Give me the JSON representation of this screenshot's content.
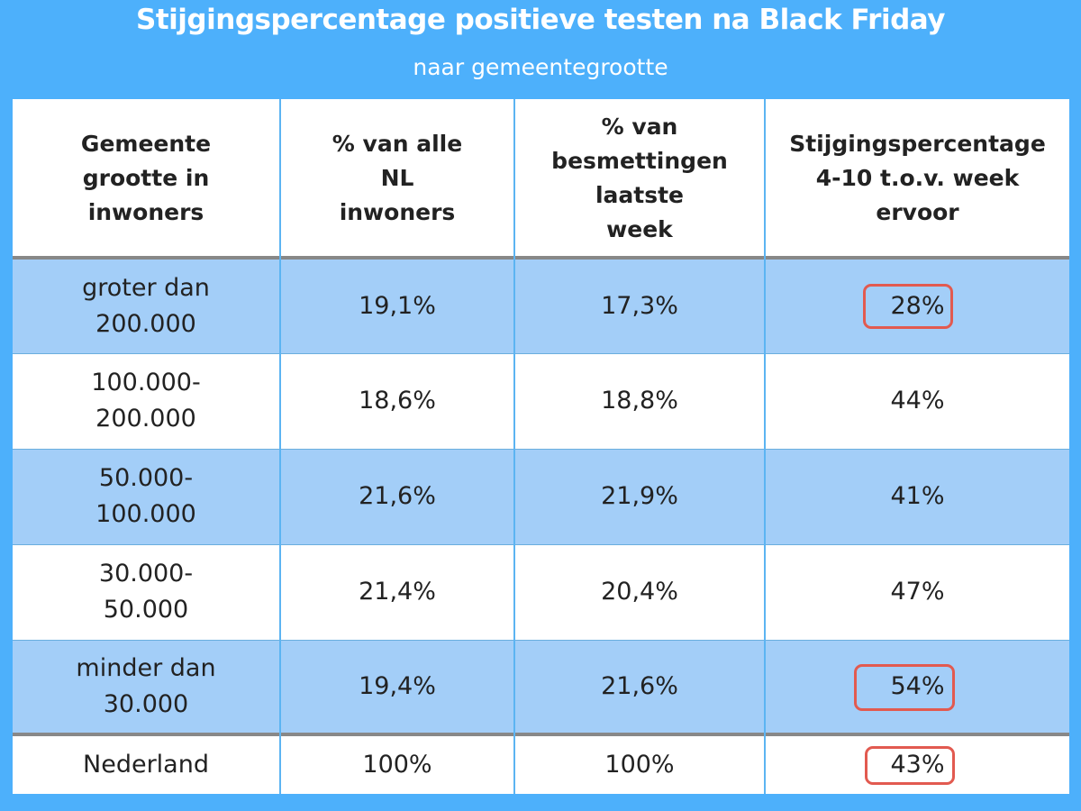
{
  "title": "Stijgingspercentage positieve testen na Black Friday",
  "subtitle": "naar gemeentegrootte",
  "headers": [
    [
      "Gemeente",
      "grootte in",
      "inwoners"
    ],
    [
      "% van alle",
      "NL",
      "inwoners"
    ],
    [
      "% van",
      "besmettingen",
      "laatste",
      "week"
    ],
    [
      "Stijgingspercentage",
      "4-10 t.o.v. week",
      "ervoor"
    ]
  ],
  "rows": [
    {
      "size": [
        "groter dan",
        "200.000"
      ],
      "pct_inhabitants": "19,1%",
      "pct_infections": "17,3%",
      "increase": "28%",
      "highlighted": true
    },
    {
      "size": [
        "100.000-",
        "200.000"
      ],
      "pct_inhabitants": "18,6%",
      "pct_infections": "18,8%",
      "increase": "44%",
      "highlighted": false
    },
    {
      "size": [
        "50.000-",
        "100.000"
      ],
      "pct_inhabitants": "21,6%",
      "pct_infections": "21,9%",
      "increase": "41%",
      "highlighted": false
    },
    {
      "size": [
        "30.000-",
        "50.000"
      ],
      "pct_inhabitants": "21,4%",
      "pct_infections": "20,4%",
      "increase": "47%",
      "highlighted": false
    },
    {
      "size": [
        "minder dan",
        "30.000"
      ],
      "pct_inhabitants": "19,4%",
      "pct_infections": "21,6%",
      "increase": "54%",
      "highlighted": true
    }
  ],
  "total": {
    "size": "Nederland",
    "pct_inhabitants": "100%",
    "pct_infections": "100%",
    "increase": "43%",
    "highlighted": true
  },
  "colors": {
    "background": "#4db0fb",
    "band": "#a3cef8",
    "highlight_border": "#e25a50",
    "divider": "#888888"
  }
}
